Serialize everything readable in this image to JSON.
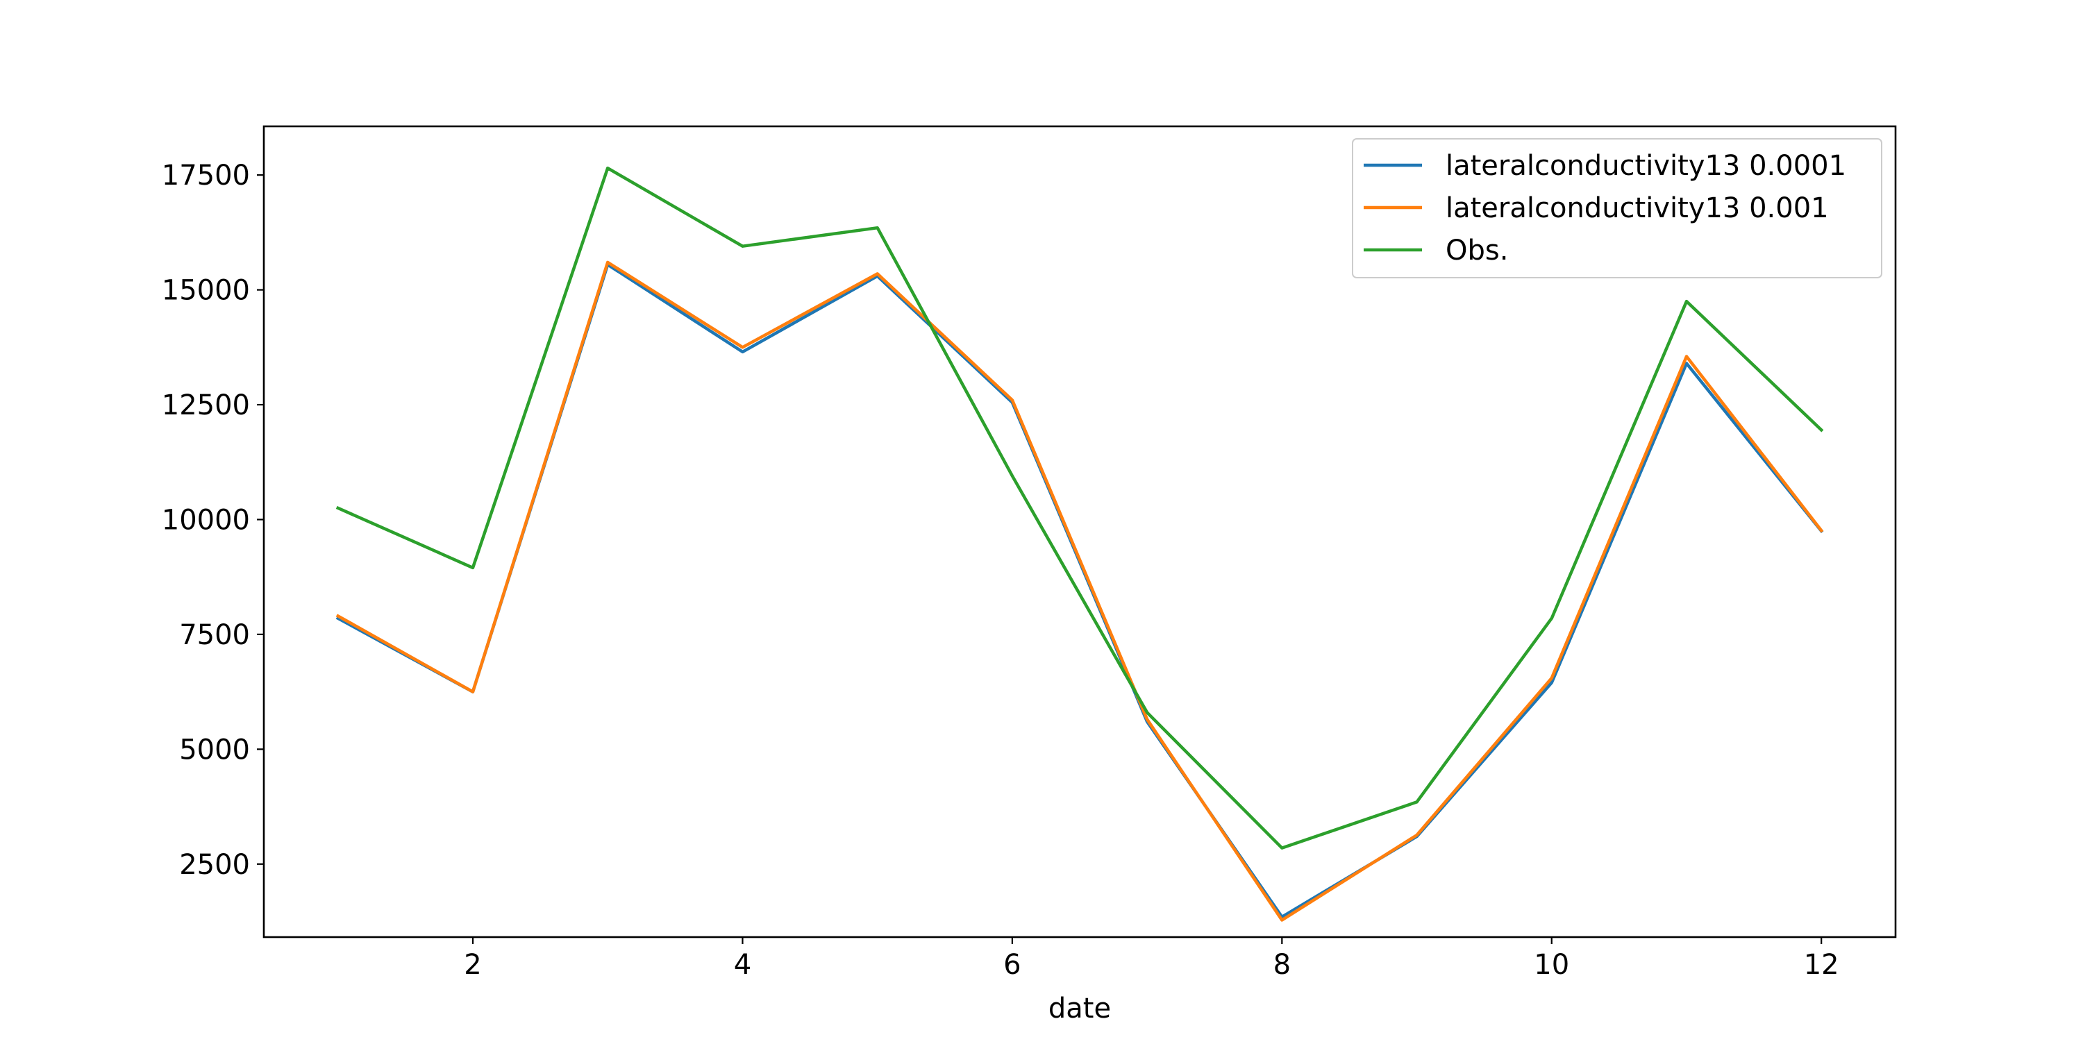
{
  "chart_data": {
    "type": "line",
    "title": "",
    "xlabel": "date",
    "ylabel": "",
    "x": [
      1,
      2,
      3,
      4,
      5,
      6,
      7,
      8,
      9,
      10,
      11,
      12
    ],
    "xlim": [
      0.45,
      12.55
    ],
    "ylim": [
      910,
      18560
    ],
    "xticks": [
      2,
      4,
      6,
      8,
      10,
      12
    ],
    "yticks": [
      2500,
      5000,
      7500,
      10000,
      12500,
      15000,
      17500
    ],
    "grid": false,
    "legend_position": "top-right",
    "series": [
      {
        "name": "lateralconductivity13 0.0001",
        "color": "#1f77b4",
        "values": [
          7850,
          6250,
          15550,
          13650,
          15300,
          12550,
          5600,
          1350,
          3100,
          6450,
          13400,
          9750
        ]
      },
      {
        "name": "lateralconductivity13 0.001",
        "color": "#ff7f0e",
        "values": [
          7900,
          6250,
          15600,
          13750,
          15350,
          12600,
          5650,
          1280,
          3130,
          6550,
          13550,
          9760
        ]
      },
      {
        "name": "Obs.",
        "color": "#2ca02c",
        "values": [
          10250,
          8950,
          17650,
          15950,
          16350,
          10950,
          5800,
          2850,
          3850,
          7850,
          14750,
          11950
        ]
      }
    ]
  }
}
